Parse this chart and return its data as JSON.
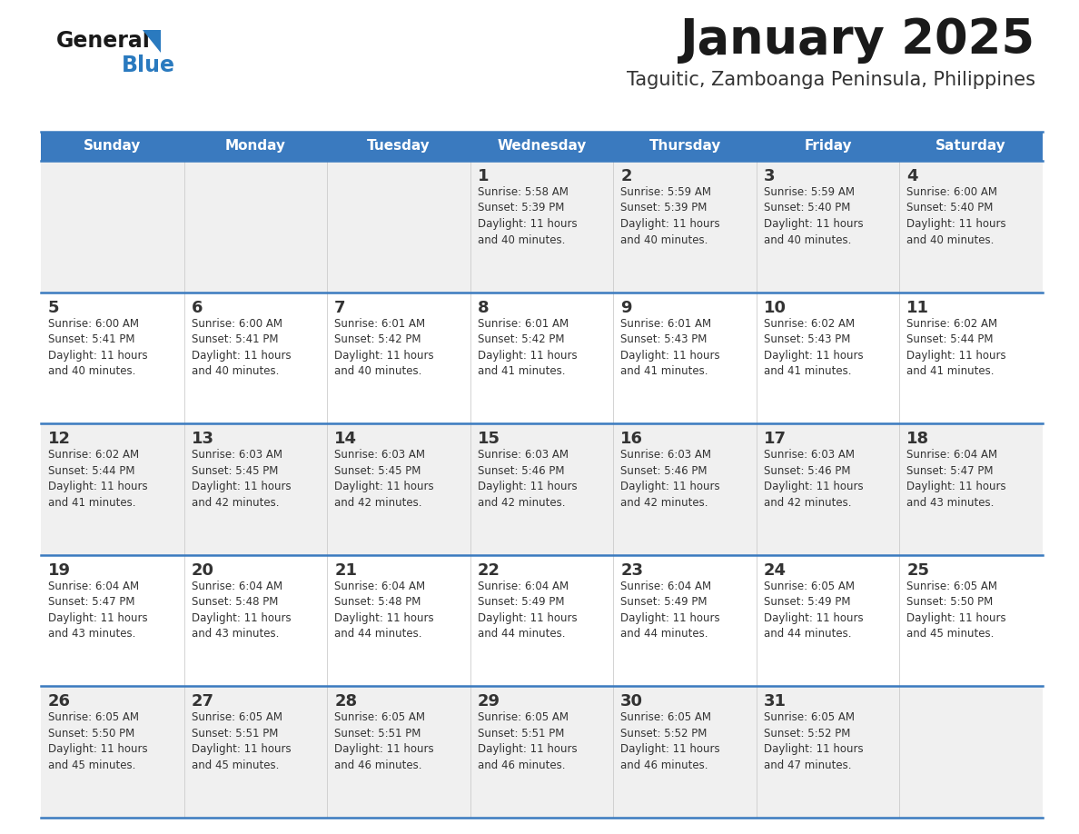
{
  "title": "January 2025",
  "subtitle": "Taguitic, Zamboanga Peninsula, Philippines",
  "header_bg_color": "#3a7abf",
  "header_text_color": "#ffffff",
  "row_bg_odd": "#f0f0f0",
  "row_bg_even": "#ffffff",
  "day_names": [
    "Sunday",
    "Monday",
    "Tuesday",
    "Wednesday",
    "Thursday",
    "Friday",
    "Saturday"
  ],
  "title_color": "#1a1a1a",
  "subtitle_color": "#333333",
  "day_num_color": "#333333",
  "cell_text_color": "#333333",
  "divider_color": "#3a7abf",
  "logo_general_color": "#1a1a1a",
  "logo_blue_color": "#2a7abf",
  "calendar": [
    [
      null,
      null,
      null,
      {
        "day": 1,
        "sunrise": "5:58 AM",
        "sunset": "5:39 PM",
        "daylight": "11 hours and 40 minutes."
      },
      {
        "day": 2,
        "sunrise": "5:59 AM",
        "sunset": "5:39 PM",
        "daylight": "11 hours and 40 minutes."
      },
      {
        "day": 3,
        "sunrise": "5:59 AM",
        "sunset": "5:40 PM",
        "daylight": "11 hours and 40 minutes."
      },
      {
        "day": 4,
        "sunrise": "6:00 AM",
        "sunset": "5:40 PM",
        "daylight": "11 hours and 40 minutes."
      }
    ],
    [
      {
        "day": 5,
        "sunrise": "6:00 AM",
        "sunset": "5:41 PM",
        "daylight": "11 hours and 40 minutes."
      },
      {
        "day": 6,
        "sunrise": "6:00 AM",
        "sunset": "5:41 PM",
        "daylight": "11 hours and 40 minutes."
      },
      {
        "day": 7,
        "sunrise": "6:01 AM",
        "sunset": "5:42 PM",
        "daylight": "11 hours and 40 minutes."
      },
      {
        "day": 8,
        "sunrise": "6:01 AM",
        "sunset": "5:42 PM",
        "daylight": "11 hours and 41 minutes."
      },
      {
        "day": 9,
        "sunrise": "6:01 AM",
        "sunset": "5:43 PM",
        "daylight": "11 hours and 41 minutes."
      },
      {
        "day": 10,
        "sunrise": "6:02 AM",
        "sunset": "5:43 PM",
        "daylight": "11 hours and 41 minutes."
      },
      {
        "day": 11,
        "sunrise": "6:02 AM",
        "sunset": "5:44 PM",
        "daylight": "11 hours and 41 minutes."
      }
    ],
    [
      {
        "day": 12,
        "sunrise": "6:02 AM",
        "sunset": "5:44 PM",
        "daylight": "11 hours and 41 minutes."
      },
      {
        "day": 13,
        "sunrise": "6:03 AM",
        "sunset": "5:45 PM",
        "daylight": "11 hours and 42 minutes."
      },
      {
        "day": 14,
        "sunrise": "6:03 AM",
        "sunset": "5:45 PM",
        "daylight": "11 hours and 42 minutes."
      },
      {
        "day": 15,
        "sunrise": "6:03 AM",
        "sunset": "5:46 PM",
        "daylight": "11 hours and 42 minutes."
      },
      {
        "day": 16,
        "sunrise": "6:03 AM",
        "sunset": "5:46 PM",
        "daylight": "11 hours and 42 minutes."
      },
      {
        "day": 17,
        "sunrise": "6:03 AM",
        "sunset": "5:46 PM",
        "daylight": "11 hours and 42 minutes."
      },
      {
        "day": 18,
        "sunrise": "6:04 AM",
        "sunset": "5:47 PM",
        "daylight": "11 hours and 43 minutes."
      }
    ],
    [
      {
        "day": 19,
        "sunrise": "6:04 AM",
        "sunset": "5:47 PM",
        "daylight": "11 hours and 43 minutes."
      },
      {
        "day": 20,
        "sunrise": "6:04 AM",
        "sunset": "5:48 PM",
        "daylight": "11 hours and 43 minutes."
      },
      {
        "day": 21,
        "sunrise": "6:04 AM",
        "sunset": "5:48 PM",
        "daylight": "11 hours and 44 minutes."
      },
      {
        "day": 22,
        "sunrise": "6:04 AM",
        "sunset": "5:49 PM",
        "daylight": "11 hours and 44 minutes."
      },
      {
        "day": 23,
        "sunrise": "6:04 AM",
        "sunset": "5:49 PM",
        "daylight": "11 hours and 44 minutes."
      },
      {
        "day": 24,
        "sunrise": "6:05 AM",
        "sunset": "5:49 PM",
        "daylight": "11 hours and 44 minutes."
      },
      {
        "day": 25,
        "sunrise": "6:05 AM",
        "sunset": "5:50 PM",
        "daylight": "11 hours and 45 minutes."
      }
    ],
    [
      {
        "day": 26,
        "sunrise": "6:05 AM",
        "sunset": "5:50 PM",
        "daylight": "11 hours and 45 minutes."
      },
      {
        "day": 27,
        "sunrise": "6:05 AM",
        "sunset": "5:51 PM",
        "daylight": "11 hours and 45 minutes."
      },
      {
        "day": 28,
        "sunrise": "6:05 AM",
        "sunset": "5:51 PM",
        "daylight": "11 hours and 46 minutes."
      },
      {
        "day": 29,
        "sunrise": "6:05 AM",
        "sunset": "5:51 PM",
        "daylight": "11 hours and 46 minutes."
      },
      {
        "day": 30,
        "sunrise": "6:05 AM",
        "sunset": "5:52 PM",
        "daylight": "11 hours and 46 minutes."
      },
      {
        "day": 31,
        "sunrise": "6:05 AM",
        "sunset": "5:52 PM",
        "daylight": "11 hours and 47 minutes."
      },
      null
    ]
  ]
}
